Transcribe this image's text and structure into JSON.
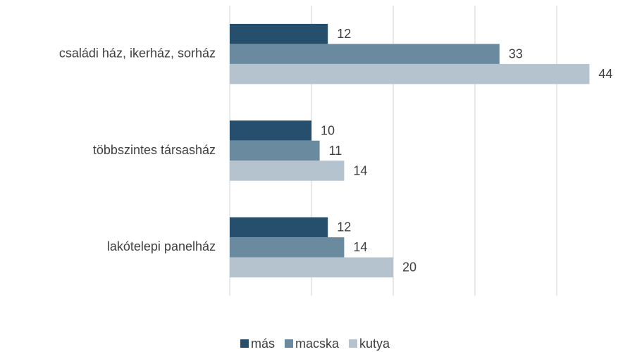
{
  "chart_data": {
    "type": "bar",
    "orientation": "horizontal",
    "categories": [
      "családi ház, ikerház, sorház",
      "többszintes társasház",
      "lakótelepi panelház"
    ],
    "series": [
      {
        "name": "más",
        "color": "#264f6e",
        "values": [
          12,
          10,
          12
        ]
      },
      {
        "name": "macska",
        "color": "#6a8aa0",
        "values": [
          33,
          11,
          14
        ]
      },
      {
        "name": "kutya",
        "color": "#b5c3ce",
        "values": [
          44,
          14,
          20
        ]
      }
    ],
    "xlim": [
      0,
      40
    ],
    "xticks": [
      0,
      10,
      20,
      30,
      40
    ],
    "grid": true,
    "legend": "bottom"
  }
}
